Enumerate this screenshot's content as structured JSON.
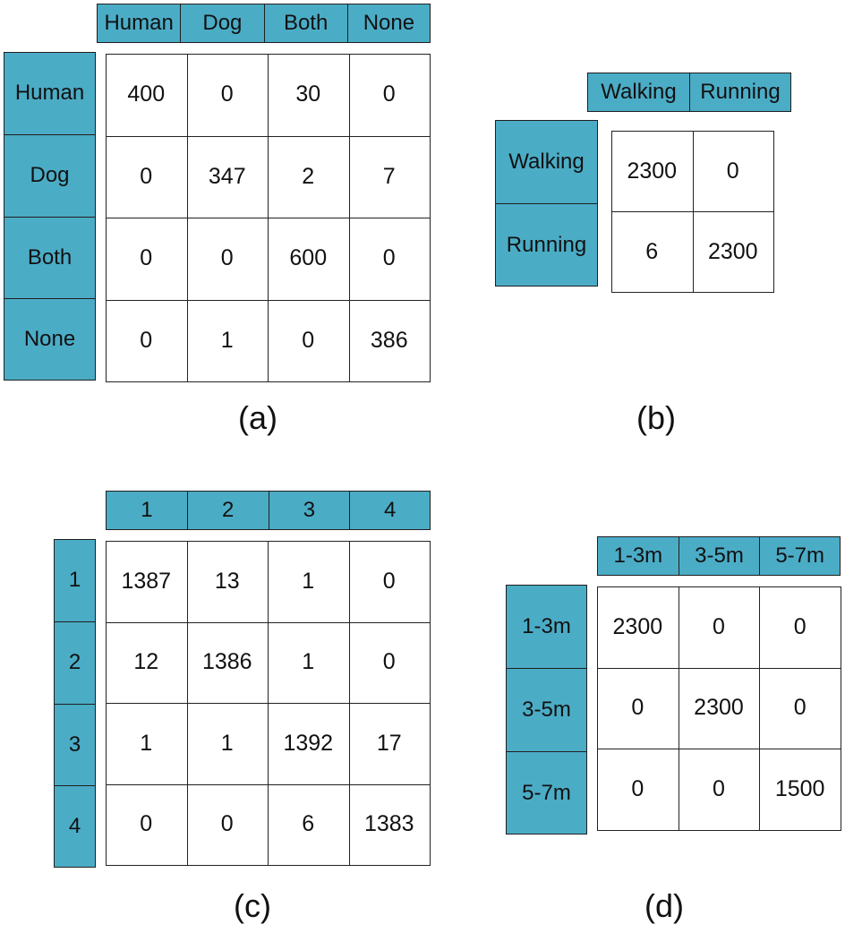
{
  "chart_data": [
    {
      "type": "table",
      "caption": "(a)",
      "col_labels": [
        "Human",
        "Dog",
        "Both",
        "None"
      ],
      "row_labels": [
        "Human",
        "Dog",
        "Both",
        "None"
      ],
      "values": [
        [
          "400",
          "0",
          "30",
          "0"
        ],
        [
          "0",
          "347",
          "2",
          "7"
        ],
        [
          "0",
          "0",
          "600",
          "0"
        ],
        [
          "0",
          "1",
          "0",
          "386"
        ]
      ],
      "header_color": "#4bacc6"
    },
    {
      "type": "table",
      "caption": "(b)",
      "col_labels": [
        "Walking",
        "Running"
      ],
      "row_labels": [
        "Walking",
        "Running"
      ],
      "values": [
        [
          "2300",
          "0"
        ],
        [
          "6",
          "2300"
        ]
      ],
      "header_color": "#4bacc6"
    },
    {
      "type": "table",
      "caption": "(c)",
      "col_labels": [
        "1",
        "2",
        "3",
        "4"
      ],
      "row_labels": [
        "1",
        "2",
        "3",
        "4"
      ],
      "values": [
        [
          "1387",
          "13",
          "1",
          "0"
        ],
        [
          "12",
          "1386",
          "1",
          "0"
        ],
        [
          "1",
          "1",
          "1392",
          "17"
        ],
        [
          "0",
          "0",
          "6",
          "1383"
        ]
      ],
      "header_color": "#4bacc6"
    },
    {
      "type": "table",
      "caption": "(d)",
      "col_labels": [
        "1-3m",
        "3-5m",
        "5-7m"
      ],
      "row_labels": [
        "1-3m",
        "3-5m",
        "5-7m"
      ],
      "values": [
        [
          "2300",
          "0",
          "0"
        ],
        [
          "0",
          "2300",
          "0"
        ],
        [
          "0",
          "0",
          "1500"
        ]
      ],
      "header_color": "#4bacc6"
    }
  ]
}
